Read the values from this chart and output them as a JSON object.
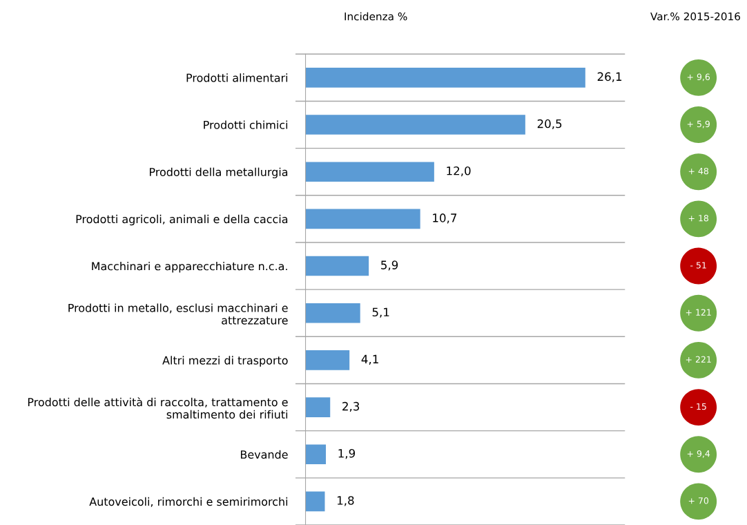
{
  "chart_data": [
    {
      "type": "bar",
      "orientation": "horizontal",
      "title": "Incidenza %",
      "color": "#5b9bd5",
      "categories": [
        "Prodotti alimentari",
        "Prodotti chimici",
        "Prodotti della metallurgia",
        "Prodotti agricoli, animali e della caccia",
        "Macchinari e apparecchiature n.c.a.",
        "Prodotti in metallo, esclusi macchinari e attrezzature",
        "Altri mezzi di trasporto",
        "Prodotti delle attività di raccolta, trattamento e smaltimento dei rifiuti",
        "Bevande",
        "Autoveicoli, rimorchi e semirimorchi"
      ],
      "values": [
        26.1,
        20.5,
        12.0,
        10.7,
        5.9,
        5.1,
        4.1,
        2.3,
        1.9,
        1.8
      ],
      "value_labels": [
        "26,1",
        "20,5",
        "12,0",
        "10,7",
        "5,9",
        "5,1",
        "4,1",
        "2,3",
        "1,9",
        "1,8"
      ]
    },
    {
      "type": "other",
      "title": "Var.% 2015-2016",
      "values": [
        9.6,
        5.9,
        48,
        18,
        -51,
        121,
        221,
        -15,
        9.4,
        70
      ],
      "value_labels": [
        "+ 9,6",
        "+ 5,9",
        "+ 48",
        "+ 18",
        "- 51",
        "+ 121",
        "+ 221",
        "- 15",
        "+ 9,4",
        "+ 70"
      ],
      "colors": [
        "#70ad47",
        "#70ad47",
        "#70ad47",
        "#70ad47",
        "#c00000",
        "#70ad47",
        "#70ad47",
        "#c00000",
        "#70ad47",
        "#70ad47"
      ]
    }
  ]
}
